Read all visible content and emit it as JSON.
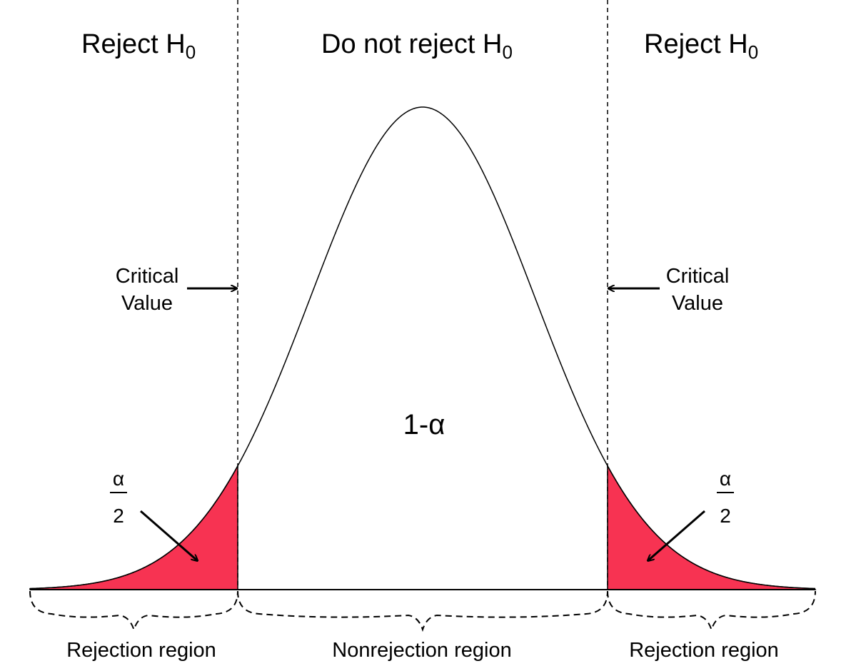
{
  "region_headers": {
    "left": {
      "text": "Reject H",
      "sub": "0"
    },
    "center": {
      "text": "Do not reject H",
      "sub": "0"
    },
    "right": {
      "text": "Reject H",
      "sub": "0"
    }
  },
  "critical_value": {
    "left": {
      "line1": "Critical",
      "line2": "Value"
    },
    "right": {
      "line1": "Critical",
      "line2": "Value"
    }
  },
  "center_area_label": "1-α",
  "tail_area": {
    "left": {
      "numerator": "α",
      "denominator": "2"
    },
    "right": {
      "numerator": "α",
      "denominator": "2"
    }
  },
  "bottom_labels": {
    "left": "Rejection region",
    "center": "Nonrejection region",
    "right": "Rejection region"
  },
  "colors": {
    "tail_fill": "#F73352",
    "curve": "#000000",
    "background": "#FFFFFF"
  }
}
